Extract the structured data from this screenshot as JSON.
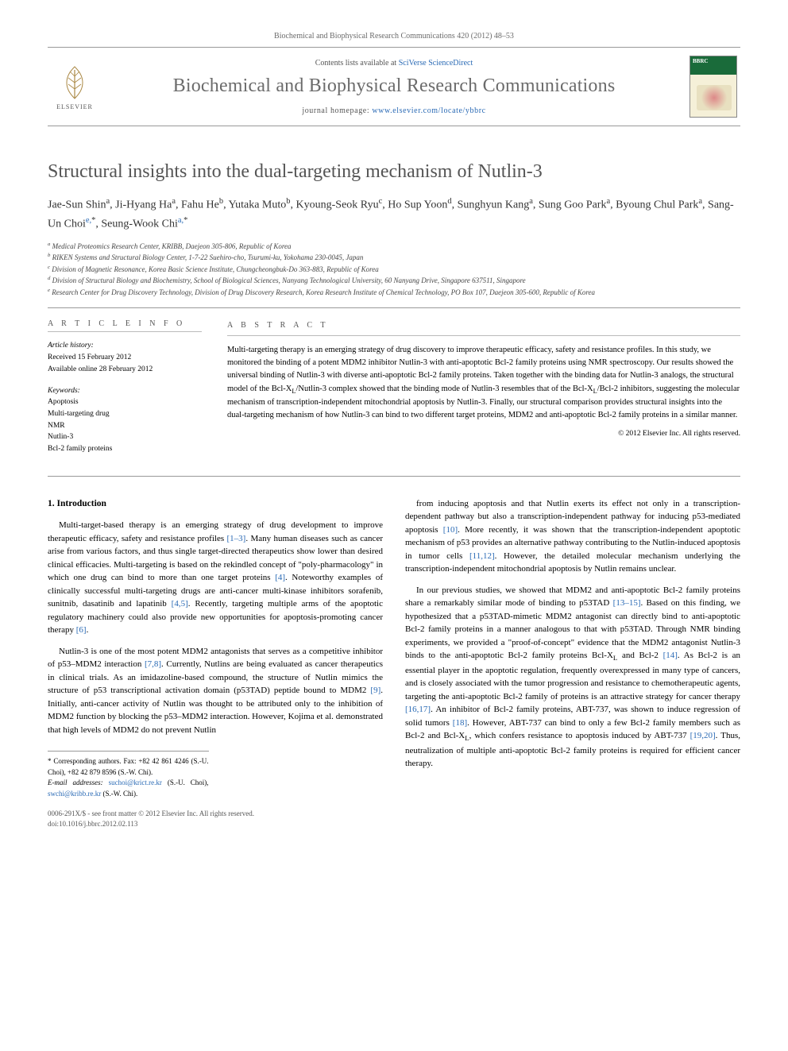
{
  "header": {
    "citation": "Biochemical and Biophysical Research Communications 420 (2012) 48–53",
    "contents_prefix": "Contents lists available at ",
    "contents_link": "SciVerse ScienceDirect",
    "journal_name": "Biochemical and Biophysical Research Communications",
    "homepage_prefix": "journal homepage: ",
    "homepage_url": "www.elsevier.com/locate/ybbrc",
    "elsevier": "ELSEVIER"
  },
  "title": "Structural insights into the dual-targeting mechanism of Nutlin-3",
  "authors_html": "Jae-Sun Shin<sup>a</sup>, Ji-Hyang Ha<sup>a</sup>, Fahu He<sup>b</sup>, Yutaka Muto<sup>b</sup>, Kyoung-Seok Ryu<sup>c</sup>, Ho Sup Yoon<sup>d</sup>, Sunghyun Kang<sup>a</sup>, Sung Goo Park<sup>a</sup>, Byoung Chul Park<sup>a</sup>, Sang-Un Choi<sup><a class=\"ref-link\">e,</a>*</sup>, Seung-Wook Chi<sup><a class=\"ref-link\">a,</a>*</sup>",
  "affiliations": [
    "a Medical Proteomics Research Center, KRIBB, Daejeon 305-806, Republic of Korea",
    "b RIKEN Systems and Structural Biology Center, 1-7-22 Suehiro-cho, Tsurumi-ku, Yokohama 230-0045, Japan",
    "c Division of Magnetic Resonance, Korea Basic Science Institute, Chungcheongbuk-Do 363-883, Republic of Korea",
    "d Division of Structural Biology and Biochemistry, School of Biological Sciences, Nanyang Technological University, 60 Nanyang Drive, Singapore 637511, Singapore",
    "e Research Center for Drug Discovery Technology, Division of Drug Discovery Research, Korea Research Institute of Chemical Technology, PO Box 107, Daejeon 305-600, Republic of Korea"
  ],
  "article_info": {
    "heading": "A R T I C L E   I N F O",
    "history_label": "Article history:",
    "received": "Received 15 February 2012",
    "online": "Available online 28 February 2012",
    "keywords_label": "Keywords:",
    "keywords": [
      "Apoptosis",
      "Multi-targeting drug",
      "NMR",
      "Nutlin-3",
      "Bcl-2 family proteins"
    ]
  },
  "abstract": {
    "heading": "A B S T R A C T",
    "text": "Multi-targeting therapy is an emerging strategy of drug discovery to improve therapeutic efficacy, safety and resistance profiles. In this study, we monitored the binding of a potent MDM2 inhibitor Nutlin-3 with anti-apoptotic Bcl-2 family proteins using NMR spectroscopy. Our results showed the universal binding of Nutlin-3 with diverse anti-apoptotic Bcl-2 family proteins. Taken together with the binding data for Nutlin-3 analogs, the structural model of the Bcl-XL/Nutlin-3 complex showed that the binding mode of Nutlin-3 resembles that of the Bcl-XL/Bcl-2 inhibitors, suggesting the molecular mechanism of transcription-independent mitochondrial apoptosis by Nutlin-3. Finally, our structural comparison provides structural insights into the dual-targeting mechanism of how Nutlin-3 can bind to two different target proteins, MDM2 and anti-apoptotic Bcl-2 family proteins in a similar manner.",
    "copyright": "© 2012 Elsevier Inc. All rights reserved."
  },
  "body": {
    "section_heading": "1. Introduction",
    "left": [
      "Multi-target-based therapy is an emerging strategy of drug development to improve therapeutic efficacy, safety and resistance profiles [1–3]. Many human diseases such as cancer arise from various factors, and thus single target-directed therapeutics show lower than desired clinical efficacies. Multi-targeting is based on the rekindled concept of \"poly-pharmacology\" in which one drug can bind to more than one target proteins [4]. Noteworthy examples of clinically successful multi-targeting drugs are anti-cancer multi-kinase inhibitors sorafenib, sunitnib, dasatinib and lapatinib [4,5]. Recently, targeting multiple arms of the apoptotic regulatory machinery could also provide new opportunities for apoptosis-promoting cancer therapy [6].",
      "Nutlin-3 is one of the most potent MDM2 antagonists that serves as a competitive inhibitor of p53–MDM2 interaction [7,8]. Currently, Nutlins are being evaluated as cancer therapeutics in clinical trials. As an imidazoline-based compound, the structure of Nutlin mimics the structure of p53 transcriptional activation domain (p53TAD) peptide bound to MDM2 [9]. Initially, anti-cancer activity of Nutlin was thought to be attributed only to the inhibition of MDM2 function by blocking the p53–MDM2 interaction. However, Kojima et al. demonstrated that high levels of MDM2 do not prevent Nutlin"
    ],
    "right": [
      "from inducing apoptosis and that Nutlin exerts its effect not only in a transcription-dependent pathway but also a transcription-independent pathway for inducing p53-mediated apoptosis [10]. More recently, it was shown that the transcription-independent apoptotic mechanism of p53 provides an alternative pathway contributing to the Nutlin-induced apoptosis in tumor cells [11,12]. However, the detailed molecular mechanism underlying the transcription-independent mitochondrial apoptosis by Nutlin remains unclear.",
      "In our previous studies, we showed that MDM2 and anti-apoptotic Bcl-2 family proteins share a remarkably similar mode of binding to p53TAD [13–15]. Based on this finding, we hypothesized that a p53TAD-mimetic MDM2 antagonist can directly bind to anti-apoptotic Bcl-2 family proteins in a manner analogous to that with p53TAD. Through NMR binding experiments, we provided a \"proof-of-concept\" evidence that the MDM2 antagonist Nutlin-3 binds to the anti-apoptotic Bcl-2 family proteins Bcl-XL and Bcl-2 [14]. As Bcl-2 is an essential player in the apoptotic regulation, frequently overexpressed in many type of cancers, and is closely associated with the tumor progression and resistance to chemotherapeutic agents, targeting the anti-apoptotic Bcl-2 family of proteins is an attractive strategy for cancer therapy [16,17]. An inhibitor of Bcl-2 family proteins, ABT-737, was shown to induce regression of solid tumors [18]. However, ABT-737 can bind to only a few Bcl-2 family members such as Bcl-2 and Bcl-XL, which confers resistance to apoptosis induced by ABT-737 [19,20]. Thus, neutralization of multiple anti-apoptotic Bcl-2 family proteins is required for efficient cancer therapy."
    ]
  },
  "footnotes": {
    "corresponding": "* Corresponding authors. Fax: +82 42 861 4246 (S.-U. Choi), +82 42 879 8596 (S.-W. Chi).",
    "email_label": "E-mail addresses:",
    "emails": "suchoi@krict.re.kr (S.-U. Choi), swchi@kribb.re.kr (S.-W. Chi)."
  },
  "doi": {
    "line1": "0006-291X/$ - see front matter © 2012 Elsevier Inc. All rights reserved.",
    "line2": "doi:10.1016/j.bbrc.2012.02.113"
  },
  "colors": {
    "link": "#2a6ab5",
    "grey_text": "#6b6b6b",
    "rule": "#999999"
  }
}
